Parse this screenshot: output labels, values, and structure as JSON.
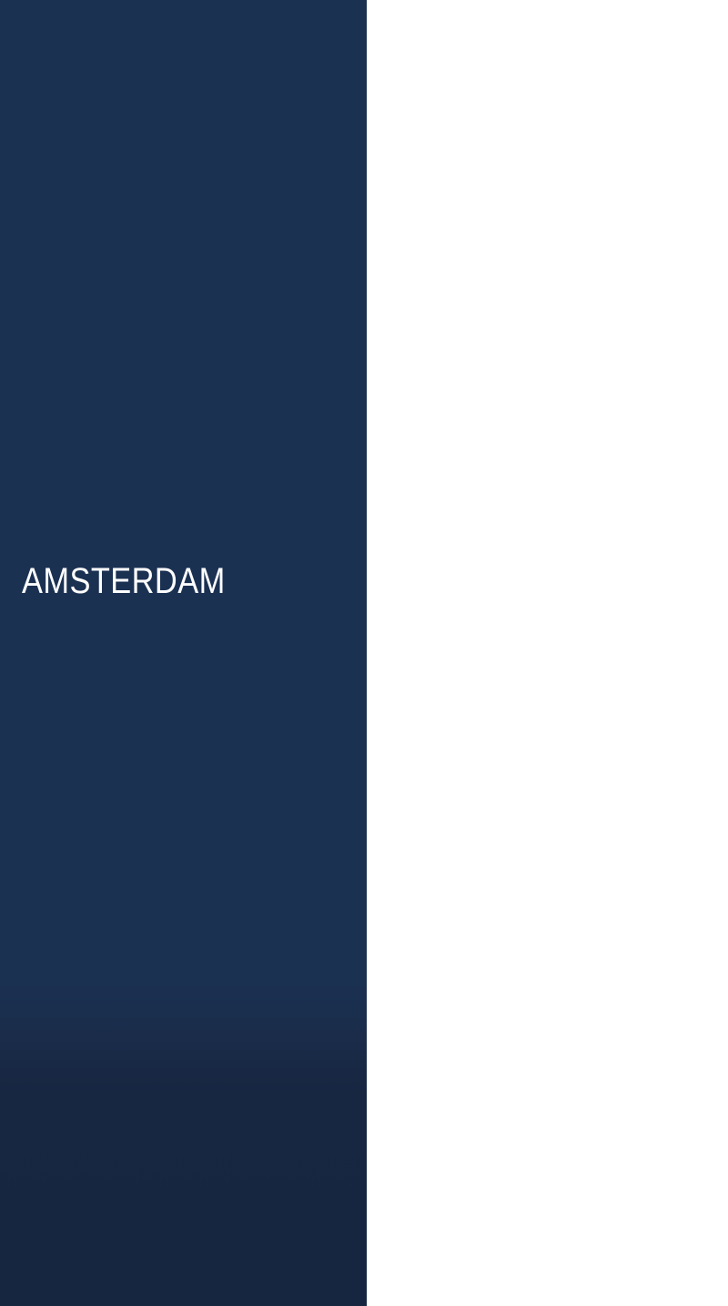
{
  "city_panel": {
    "title": "AMSTERDAM",
    "background_color": "#1b3152",
    "bottom_shade_color": "#162540",
    "text_color": "#ffffff"
  },
  "content_panel": {
    "background_color": "#ffffff"
  }
}
